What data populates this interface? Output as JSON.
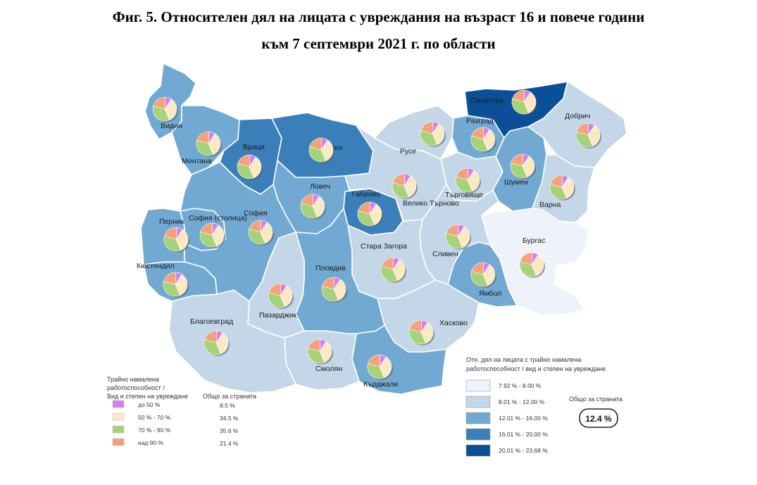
{
  "title_line1": "Фиг. 5. Относителен дял на лицата с увреждания на възраст 16 и повече години",
  "title_line2": "към 7 септември 2021 г. по области",
  "colors": {
    "class1": "#eef2fb",
    "class2": "#c3d7e8",
    "class3": "#72a9d3",
    "class4": "#3b7fba",
    "class5": "#0b4f98",
    "pie_up_to_50": "#d580ef",
    "pie_50_70": "#fbe9c3",
    "pie_70_90": "#a6d27a",
    "pie_over_90": "#f5a27c"
  },
  "regions": [
    {
      "name": "Видин",
      "class": 3
    },
    {
      "name": "Монтана",
      "class": 3
    },
    {
      "name": "Враца",
      "class": 4
    },
    {
      "name": "Плевен",
      "class": 4
    },
    {
      "name": "Ловеч",
      "class": 3
    },
    {
      "name": "Габрово",
      "class": 4
    },
    {
      "name": "Велико Търново",
      "class": 2
    },
    {
      "name": "Русе",
      "class": 2
    },
    {
      "name": "Разград",
      "class": 3
    },
    {
      "name": "Силистра",
      "class": 5
    },
    {
      "name": "Добрич",
      "class": 2
    },
    {
      "name": "Търговище",
      "class": 2
    },
    {
      "name": "Шумен",
      "class": 3
    },
    {
      "name": "Варна",
      "class": 2
    },
    {
      "name": "Бургас",
      "class": 1
    },
    {
      "name": "Ямбол",
      "class": 3
    },
    {
      "name": "Сливен",
      "class": 2
    },
    {
      "name": "Стара Загора",
      "class": 2
    },
    {
      "name": "Хасково",
      "class": 2
    },
    {
      "name": "Кърджали",
      "class": 3
    },
    {
      "name": "Смолян",
      "class": 2
    },
    {
      "name": "Пловдив",
      "class": 3
    },
    {
      "name": "Пазарджик",
      "class": 2
    },
    {
      "name": "Благоевград",
      "class": 2
    },
    {
      "name": "Кюстендил",
      "class": 3
    },
    {
      "name": "Перник",
      "class": 3
    },
    {
      "name": "София (столица)",
      "class": 3
    },
    {
      "name": "София",
      "class": 3
    }
  ],
  "pie_legend": {
    "heading_lines": [
      "Трайно намалена",
      "работоспособност /",
      "Вид и степен на увреждане"
    ],
    "total_heading": "Общо за страната",
    "items": [
      {
        "label": "до   50 %",
        "value": "8.5 %",
        "share": 8.5
      },
      {
        "label": "50 %  -  70 %",
        "value": "34.5 %",
        "share": 34.5
      },
      {
        "label": "70 %  -  90 %",
        "value": "35.6 %",
        "share": 35.6
      },
      {
        "label": "над     90 %",
        "value": "21.4 %",
        "share": 21.4
      }
    ]
  },
  "class_legend": {
    "heading_lines": [
      "Отн. дял на лицата с трайно намалена",
      "работоспособност / вид и степен на увреждане"
    ],
    "classes": [
      "7.92 % - 8.00 %",
      "8.01 % - 12.00 %",
      "12.01 % - 16.00 %",
      "16.01 % - 20.00 %",
      "20.01 % - 23.68 %"
    ],
    "total_label": "Общо за страната",
    "total_value": "12.4 %"
  }
}
